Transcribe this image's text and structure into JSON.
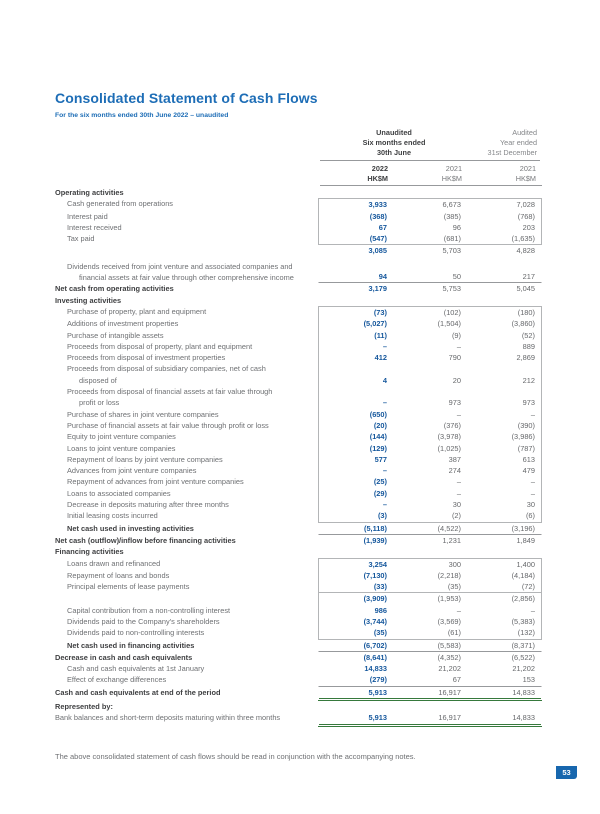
{
  "document": {
    "title": "Consolidated Statement of Cash Flows",
    "subtitle": "For the six months ended 30th June 2022 – unaudited",
    "footnote": "The above consolidated statement of cash flows should be read in conjunction with the accompanying notes.",
    "page_number": "53"
  },
  "colors": {
    "title-blue": "#1d6db6",
    "value-blue": "#15579c",
    "green-rule": "#36793c",
    "badge-blue": "#1767ae"
  },
  "table": {
    "col_headers": {
      "group1": [
        "Unaudited",
        "Six months ended",
        "30th June"
      ],
      "group2": [
        "Audited",
        "Year ended",
        "31st December"
      ],
      "cols": [
        {
          "year": "2022",
          "unit": "HK$M"
        },
        {
          "year": "2021",
          "unit": "HK$M"
        },
        {
          "year": "2021",
          "unit": "HK$M"
        }
      ]
    },
    "rows": [
      {
        "label": "Operating activities",
        "b": 1
      },
      {
        "label": "Cash generated from operations",
        "ind": 1,
        "v": [
          "3,933",
          "6,673",
          "7,028"
        ],
        "s": "bx bt"
      },
      {
        "label": "Interest paid",
        "ind": 1,
        "v": [
          "(368)",
          "(385)",
          "(768)"
        ],
        "s": "bx"
      },
      {
        "label": "Interest received",
        "ind": 1,
        "v": [
          "67",
          "96",
          "203"
        ],
        "s": "bx"
      },
      {
        "label": "Tax paid",
        "ind": 1,
        "v": [
          "(547)",
          "(681)",
          "(1,635)"
        ],
        "s": "bx bb"
      },
      {
        "label": "",
        "v": [
          "3,085",
          "5,703",
          "4,828"
        ]
      },
      {
        "spacer": true
      },
      {
        "label": "Dividends received from joint venture and associated companies and",
        "l2": "financial assets at fair value through other comprehensive income",
        "ind": 1,
        "v": [
          "94",
          "50",
          "217"
        ],
        "s": "rb"
      },
      {
        "label": "Net cash from operating activities",
        "b": 1,
        "v": [
          "3,179",
          "5,753",
          "5,045"
        ]
      },
      {
        "label": "Investing activities",
        "b": 1
      },
      {
        "label": "Purchase of property, plant and equipment",
        "ind": 1,
        "v": [
          "(73)",
          "(102)",
          "(180)"
        ],
        "s": "bx bt"
      },
      {
        "label": "Additions of investment properties",
        "ind": 1,
        "v": [
          "(5,027)",
          "(1,504)",
          "(3,860)"
        ],
        "s": "bx"
      },
      {
        "label": "Purchase of intangible assets",
        "ind": 1,
        "v": [
          "(11)",
          "(9)",
          "(52)"
        ],
        "s": "bx"
      },
      {
        "label": "Proceeds from disposal of property, plant and equipment",
        "ind": 1,
        "v": [
          "–",
          "–",
          "889"
        ],
        "s": "bx"
      },
      {
        "label": "Proceeds from disposal of investment properties",
        "ind": 1,
        "v": [
          "412",
          "790",
          "2,869"
        ],
        "s": "bx"
      },
      {
        "label": "Proceeds from disposal of subsidiary companies, net of cash",
        "l2": "disposed of",
        "ind": 1,
        "v": [
          "4",
          "20",
          "212"
        ],
        "s": "bx"
      },
      {
        "label": "Proceeds from disposal of financial assets at fair value through",
        "l2": "profit or loss",
        "ind": 1,
        "v": [
          "–",
          "973",
          "973"
        ],
        "s": "bx"
      },
      {
        "label": "Purchase of shares in joint venture companies",
        "ind": 1,
        "v": [
          "(650)",
          "–",
          "–"
        ],
        "s": "bx"
      },
      {
        "label": "Purchase of financial assets at fair value through profit or loss",
        "ind": 1,
        "v": [
          "(20)",
          "(376)",
          "(390)"
        ],
        "s": "bx"
      },
      {
        "label": "Equity to joint venture companies",
        "ind": 1,
        "v": [
          "(144)",
          "(3,978)",
          "(3,986)"
        ],
        "s": "bx"
      },
      {
        "label": "Loans to joint venture companies",
        "ind": 1,
        "v": [
          "(129)",
          "(1,025)",
          "(787)"
        ],
        "s": "bx"
      },
      {
        "label": "Repayment of loans by joint venture companies",
        "ind": 1,
        "v": [
          "577",
          "387",
          "613"
        ],
        "s": "bx"
      },
      {
        "label": "Advances from joint venture companies",
        "ind": 1,
        "v": [
          "–",
          "274",
          "479"
        ],
        "s": "bx"
      },
      {
        "label": "Repayment of advances from joint venture companies",
        "ind": 1,
        "v": [
          "(25)",
          "–",
          "–"
        ],
        "s": "bx"
      },
      {
        "label": "Loans to associated companies",
        "ind": 1,
        "v": [
          "(29)",
          "–",
          "–"
        ],
        "s": "bx"
      },
      {
        "label": "Decrease in deposits maturing after three months",
        "ind": 1,
        "v": [
          "–",
          "30",
          "30"
        ],
        "s": "bx"
      },
      {
        "label": "Initial leasing costs incurred",
        "ind": 1,
        "v": [
          "(3)",
          "(2)",
          "(6)"
        ],
        "s": "bx bb"
      },
      {
        "label": "Net cash used in investing activities",
        "ind": 1,
        "b": 1,
        "v": [
          "(5,118)",
          "(4,522)",
          "(3,196)"
        ],
        "s": "rb"
      },
      {
        "label": "Net cash (outflow)/inflow before financing activities",
        "b": 1,
        "v": [
          "(1,939)",
          "1,231",
          "1,849"
        ]
      },
      {
        "label": "Financing activities",
        "b": 1
      },
      {
        "label": "Loans drawn and refinanced",
        "ind": 1,
        "v": [
          "3,254",
          "300",
          "1,400"
        ],
        "s": "bx bt"
      },
      {
        "label": "Repayment of loans and bonds",
        "ind": 1,
        "v": [
          "(7,130)",
          "(2,218)",
          "(4,184)"
        ],
        "s": "bx"
      },
      {
        "label": "Principal elements of lease payments",
        "ind": 1,
        "v": [
          "(33)",
          "(35)",
          "(72)"
        ],
        "s": "bx"
      },
      {
        "label": "",
        "v": [
          "(3,909)",
          "(1,953)",
          "(2,856)"
        ],
        "s": "bx dv"
      },
      {
        "label": "Capital contribution from a non-controlling interest",
        "ind": 1,
        "v": [
          "986",
          "–",
          "–"
        ],
        "s": "bx"
      },
      {
        "label": "Dividends paid to the Company's shareholders",
        "ind": 1,
        "v": [
          "(3,744)",
          "(3,569)",
          "(5,383)"
        ],
        "s": "bx"
      },
      {
        "label": "Dividends paid to non-controlling interests",
        "ind": 1,
        "v": [
          "(35)",
          "(61)",
          "(132)"
        ],
        "s": "bx bb"
      },
      {
        "label": "Net cash used in financing activities",
        "ind": 1,
        "b": 1,
        "v": [
          "(6,702)",
          "(5,583)",
          "(8,371)"
        ],
        "s": "rb"
      },
      {
        "label": "Decrease in cash and cash equivalents",
        "b": 1,
        "v": [
          "(8,641)",
          "(4,352)",
          "(6,522)"
        ]
      },
      {
        "label": "Cash and cash equivalents at 1st January",
        "ind": 1,
        "v": [
          "14,833",
          "21,202",
          "21,202"
        ]
      },
      {
        "label": "Effect of exchange differences",
        "ind": 1,
        "v": [
          "(279)",
          "67",
          "153"
        ],
        "s": "rb"
      },
      {
        "label": "Cash and cash equivalents at end of the period",
        "b": 1,
        "v": [
          "5,913",
          "16,917",
          "14,833"
        ],
        "s": "gb"
      },
      {
        "label": "Represented by:",
        "b": 1
      },
      {
        "label": "Bank balances and short-term deposits maturing within three months",
        "v": [
          "5,913",
          "16,917",
          "14,833"
        ],
        "s": "gb"
      }
    ]
  }
}
